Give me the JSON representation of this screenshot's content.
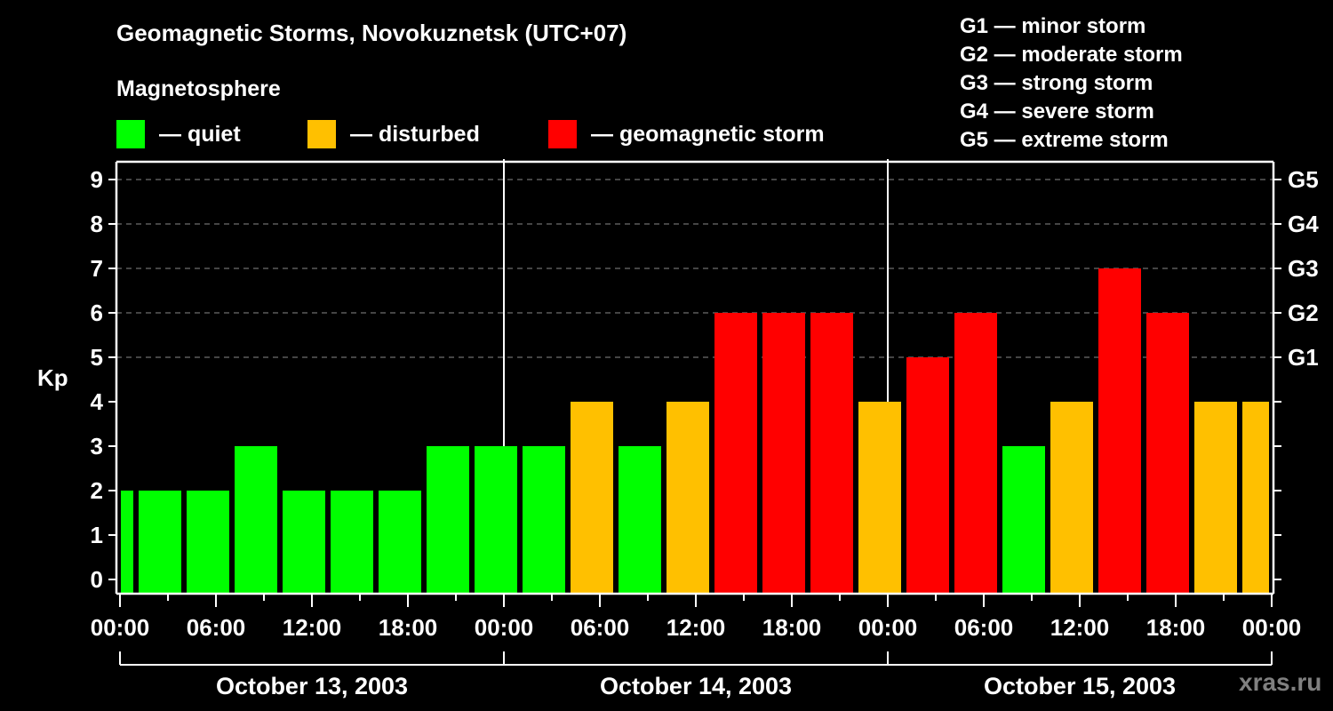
{
  "header": {
    "title": "Geomagnetic Storms, Novokuznetsk (UTC+07)",
    "subtitle": "Magnetosphere"
  },
  "legend": [
    {
      "label": "— quiet",
      "color": "#00FF00"
    },
    {
      "label": "— disturbed",
      "color": "#FFC000"
    },
    {
      "label": "— geomagnetic storm",
      "color": "#FF0000"
    }
  ],
  "g_scale": [
    "G1 — minor storm",
    "G2 — moderate storm",
    "G3 — strong storm",
    "G4 — severe storm",
    "G5 — extreme storm"
  ],
  "watermark": "xras.ru",
  "chart_data": {
    "type": "bar",
    "title": "Geomagnetic Storms, Novokuznetsk (UTC+07)",
    "subtitle": "Magnetosphere",
    "xlabel": "",
    "ylabel": "Kp",
    "ylim": [
      0,
      9
    ],
    "yticks": [
      0,
      1,
      2,
      3,
      4,
      5,
      6,
      7,
      8,
      9
    ],
    "right_axis_ticks": [
      {
        "kp": 5,
        "label": "G1"
      },
      {
        "kp": 6,
        "label": "G2"
      },
      {
        "kp": 7,
        "label": "G3"
      },
      {
        "kp": 8,
        "label": "G4"
      },
      {
        "kp": 9,
        "label": "G5"
      }
    ],
    "grid": {
      "horizontal_dashed_at": [
        5,
        6,
        7,
        8,
        9
      ]
    },
    "xtick_labels": [
      "00:00",
      "06:00",
      "12:00",
      "18:00",
      "00:00",
      "06:00",
      "12:00",
      "18:00",
      "00:00",
      "06:00",
      "12:00",
      "18:00",
      "00:00"
    ],
    "days": [
      "October 13, 2003",
      "October 14, 2003",
      "October 15, 2003"
    ],
    "bin_hours": 3,
    "bin_start_offset_hours": -2,
    "categories": [
      "Oct13 -02:00",
      "Oct13 01:00",
      "Oct13 04:00",
      "Oct13 07:00",
      "Oct13 10:00",
      "Oct13 13:00",
      "Oct13 16:00",
      "Oct13 19:00",
      "Oct13 22:00",
      "Oct14 01:00",
      "Oct14 04:00",
      "Oct14 07:00",
      "Oct14 10:00",
      "Oct14 13:00",
      "Oct14 16:00",
      "Oct14 19:00",
      "Oct14 22:00",
      "Oct15 01:00",
      "Oct15 04:00",
      "Oct15 07:00",
      "Oct15 10:00",
      "Oct15 13:00",
      "Oct15 16:00",
      "Oct15 19:00",
      "Oct15 22:00"
    ],
    "values": [
      2,
      2,
      2,
      3,
      2,
      2,
      2,
      3,
      3,
      3,
      4,
      3,
      4,
      6,
      6,
      6,
      4,
      5,
      6,
      3,
      4,
      7,
      6,
      4,
      4
    ],
    "color_rules": {
      "quiet": {
        "max": 3,
        "color": "#00FF00"
      },
      "disturbed": {
        "value": 4,
        "color": "#FFC000"
      },
      "storm": {
        "min": 5,
        "color": "#FF0000"
      }
    }
  }
}
